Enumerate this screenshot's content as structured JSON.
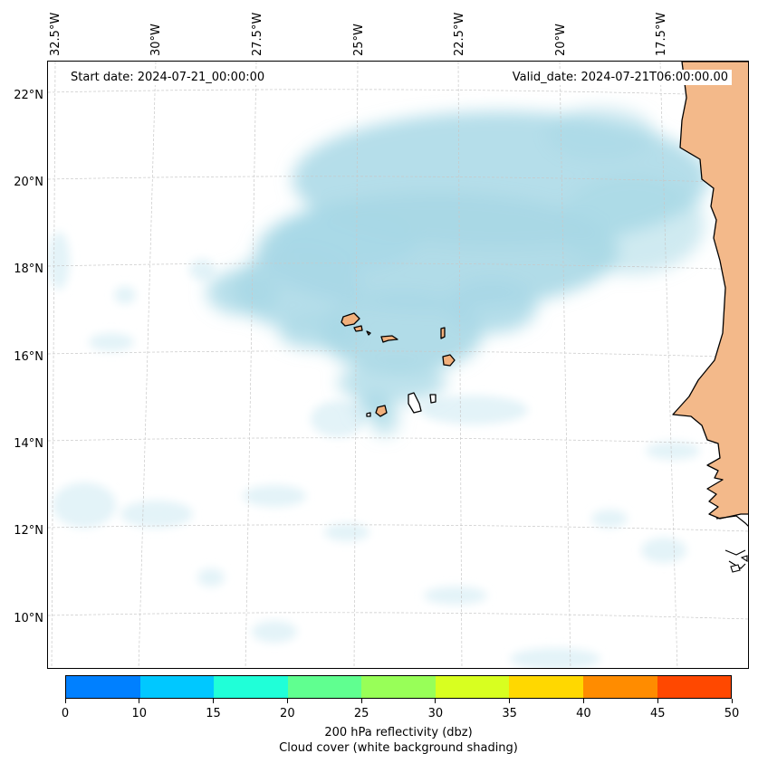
{
  "map": {
    "header_left": "Start date: 2024-07-21_00:00:00",
    "header_right": "Valid_date: 2024-07-21T06:00:00.00",
    "lon_ticks": [
      "32.5°W",
      "30°W",
      "27.5°W",
      "25°W",
      "22.5°W",
      "20°W",
      "17.5°W"
    ],
    "lat_ticks": [
      "22°N",
      "20°N",
      "18°N",
      "16°N",
      "14°N",
      "12°N",
      "10°N"
    ],
    "colors": {
      "cloud": "#a8d8e6",
      "cloud_light": "#e3f3f8",
      "land_fill": "#f3b98a",
      "island_fill": "#f2b07c",
      "coast": "#000000",
      "grid": "#c8c8c8"
    }
  },
  "colorbar": {
    "ticks": [
      "0",
      "10",
      "15",
      "20",
      "25",
      "30",
      "35",
      "40",
      "45",
      "50"
    ],
    "colors": [
      "#0080ff",
      "#00c8ff",
      "#20ffd8",
      "#60ff90",
      "#98ff58",
      "#d8ff20",
      "#ffd800",
      "#ff8c00",
      "#ff4800"
    ],
    "label_line1": "200 hPa reflectivity (dbz)",
    "label_line2": "Cloud cover (white background shading)"
  }
}
